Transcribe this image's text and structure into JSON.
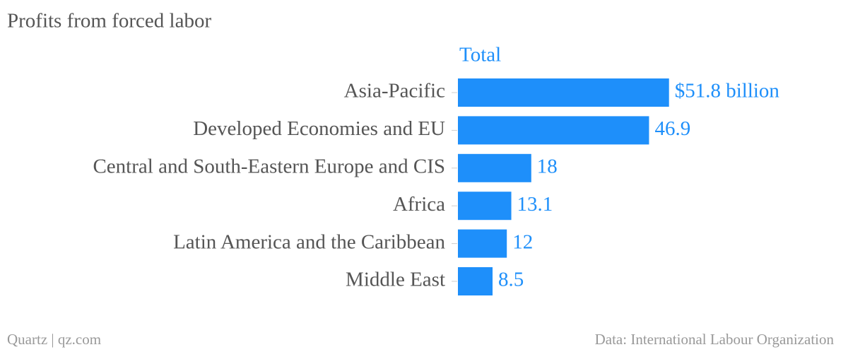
{
  "chart_data": {
    "type": "bar",
    "orientation": "horizontal",
    "title": "Profits from forced labor",
    "categories": [
      "Asia-Pacific",
      "Developed Economies and EU",
      "Central and South-Eastern Europe and CIS",
      "Africa",
      "Latin America and the Caribbean",
      "Middle East"
    ],
    "series": [
      {
        "name": "Total",
        "color": "#1e8ffa",
        "values": [
          51.8,
          46.9,
          18,
          13.1,
          12,
          8.5
        ],
        "value_labels": [
          "$51.8 billion",
          "46.9",
          "18",
          "13.1",
          "12",
          "8.5"
        ]
      }
    ],
    "xlim": [
      0,
      90
    ],
    "source": "Data: International Labour Organization",
    "credit": "Quartz | qz.com"
  }
}
